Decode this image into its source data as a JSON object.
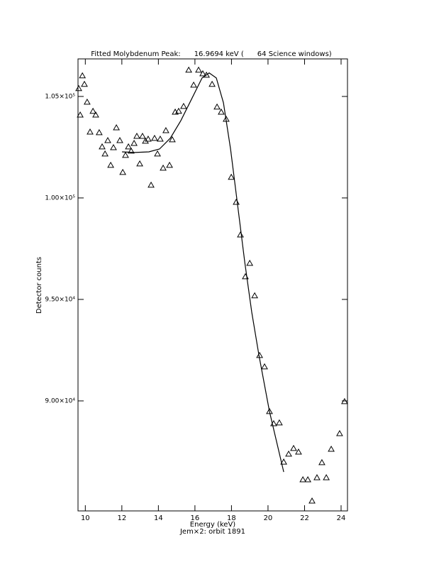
{
  "chart_data": {
    "type": "scatter",
    "title": "Fitted Molybdenum Peak:      16.9694 keV (      64 Science windows)",
    "xlabel": "Energy (keV)",
    "ylabel": "Detector counts",
    "subtitle": "Jem×2: orbit 1891",
    "color": "#000000",
    "xlim": [
      9.6,
      24.35
    ],
    "ylim": [
      84580,
      106850
    ],
    "xticks": [
      10,
      12,
      14,
      16,
      18,
      20,
      22,
      24
    ],
    "yticks": [
      {
        "value": 90000,
        "label": "9.00×10⁴"
      },
      {
        "value": 95000,
        "label": "9.50×10⁴"
      },
      {
        "value": 100000,
        "label": "1.00×10⁵"
      },
      {
        "value": 105000,
        "label": "1.05×10⁵"
      }
    ],
    "x": [
      9.64,
      9.72,
      9.84,
      9.95,
      10.1,
      10.26,
      10.42,
      10.57,
      10.76,
      10.92,
      11.08,
      11.23,
      11.39,
      11.54,
      11.7,
      11.89,
      12.05,
      12.2,
      12.36,
      12.51,
      12.67,
      12.82,
      12.98,
      13.13,
      13.29,
      13.44,
      13.6,
      13.79,
      13.95,
      14.1,
      14.26,
      14.41,
      14.61,
      14.76,
      14.92,
      15.11,
      15.38,
      15.66,
      15.93,
      16.2,
      16.43,
      16.63,
      16.94,
      17.21,
      17.44,
      17.71,
      17.99,
      18.26,
      18.49,
      18.76,
      19.0,
      19.27,
      19.54,
      19.81,
      20.08,
      20.31,
      20.62,
      20.86,
      21.13,
      21.4,
      21.67,
      21.91,
      22.18,
      22.41,
      22.68,
      22.95,
      23.19,
      23.46,
      23.92,
      24.19
    ],
    "values": [
      105390,
      104090,
      106020,
      105600,
      104720,
      103250,
      104270,
      104090,
      103220,
      102520,
      102170,
      102830,
      101610,
      102480,
      103460,
      102830,
      101260,
      102100,
      102520,
      102310,
      102690,
      103040,
      101680,
      103040,
      102800,
      102900,
      100630,
      102940,
      102170,
      102900,
      101470,
      103320,
      101610,
      102870,
      104230,
      104270,
      104510,
      106300,
      105560,
      106300,
      106120,
      106050,
      105600,
      104480,
      104230,
      103880,
      101020,
      99790,
      98180,
      96120,
      96780,
      95180,
      92240,
      91680,
      89480,
      88880,
      88920,
      86990,
      87380,
      87660,
      87480,
      86120,
      86120,
      85070,
      86220,
      86960,
      86220,
      87620,
      88390,
      89970
    ],
    "fit": {
      "x": [
        12.01,
        12.71,
        13.48,
        14.06,
        14.65,
        15.23,
        15.81,
        16.39,
        16.78,
        17.17,
        17.56,
        17.95,
        18.34,
        18.73,
        19.11,
        19.5,
        20.08,
        20.86
      ],
      "values": [
        102270,
        102240,
        102270,
        102410,
        102940,
        103810,
        104860,
        105910,
        106160,
        105910,
        104690,
        102410,
        99620,
        96820,
        94370,
        92270,
        89480,
        86500
      ]
    }
  }
}
